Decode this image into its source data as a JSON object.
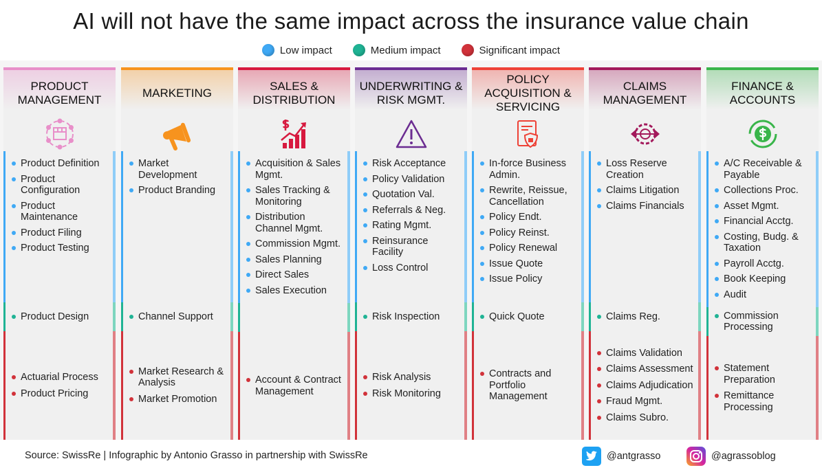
{
  "title": "AI will not have the same impact across the insurance value chain",
  "legend": [
    {
      "label": "Low impact",
      "color": "#3fa9f5"
    },
    {
      "label": "Medium impact",
      "color": "#1fb394"
    },
    {
      "label": "Significant impact",
      "color": "#d1323a"
    }
  ],
  "columns": [
    {
      "title": "Product Management",
      "color": "#e88fc9",
      "icon": "product-box-gears-icon",
      "low": [
        "Product Definition",
        "Product Configuration",
        "Product Maintenance",
        "Product Filing",
        "Product Testing"
      ],
      "medium": [
        "Product Design"
      ],
      "significant": [
        "Actuarial Process",
        "Product Pricing"
      ]
    },
    {
      "title": "Marketing",
      "color": "#f7931e",
      "icon": "megaphone-icon",
      "low": [
        "Market Development",
        "Product Branding"
      ],
      "medium": [
        "Channel Support"
      ],
      "significant": [
        "Market Research & Analysis",
        "Market Promotion"
      ]
    },
    {
      "title": "Sales & Distribution",
      "color": "#d7193f",
      "icon": "sales-growth-chart-icon",
      "low": [
        "Acquisition & Sales Mgmt.",
        "Sales Tracking & Monitoring",
        "Distribution Channel Mgmt.",
        "Commission Mgmt.",
        "Sales Planning",
        "Direct Sales",
        "Sales Execution"
      ],
      "medium": [],
      "significant": [
        "Account & Contract Management"
      ]
    },
    {
      "title": "Underwriting & Risk Mgmt.",
      "color": "#6b2c91",
      "icon": "warning-triangle-icon",
      "low": [
        "Risk Acceptance",
        "Policy Validation",
        "Quotation Val.",
        "Referrals & Neg.",
        "Rating Mgmt.",
        "Reinsurance Facility",
        "Loss Control"
      ],
      "medium": [
        "Risk Inspection"
      ],
      "significant": [
        "Risk Analysis",
        "Risk Monitoring"
      ]
    },
    {
      "title": "Policy Acquisition & Servicing",
      "color": "#ee4136",
      "icon": "policy-document-shield-icon",
      "low": [
        "In-force Business Admin.",
        "Rewrite, Reissue, Cancellation",
        "Policy Endt.",
        "Policy Reinst.",
        "Policy Renewal",
        "Issue Quote",
        "Issue Policy"
      ],
      "medium": [
        "Quick Quote"
      ],
      "significant": [
        "Contracts and Portfolio Management"
      ]
    },
    {
      "title": "Claims Management",
      "color": "#a3195b",
      "icon": "claims-gear-arrows-icon",
      "low": [
        "Loss Reserve Creation",
        "Claims Litigation",
        "Claims Financials"
      ],
      "medium": [
        "Claims Reg."
      ],
      "significant": [
        "Claims Validation",
        "Claims Assessment",
        "Claims Adjudication",
        "Fraud Mgmt.",
        "Claims Subro."
      ]
    },
    {
      "title": "Finance & Accounts",
      "color": "#39b54a",
      "icon": "dollar-cycle-icon",
      "low": [
        "A/C Receivable & Payable",
        "Collections Proc.",
        "Asset Mgmt.",
        "Financial Acctg.",
        "Costing, Budg. & Taxation",
        "Payroll Acctg.",
        "Book Keeping",
        "Audit"
      ],
      "medium": [
        "Commission Processing"
      ],
      "significant": [
        "Statement Preparation",
        "Remittance Processing"
      ]
    }
  ],
  "footer": {
    "source": "Source: SwissRe | Infographic by Antonio Grasso in partnership with SwissRe",
    "twitter": "@antgrasso",
    "instagram": "@agrassoblog"
  }
}
